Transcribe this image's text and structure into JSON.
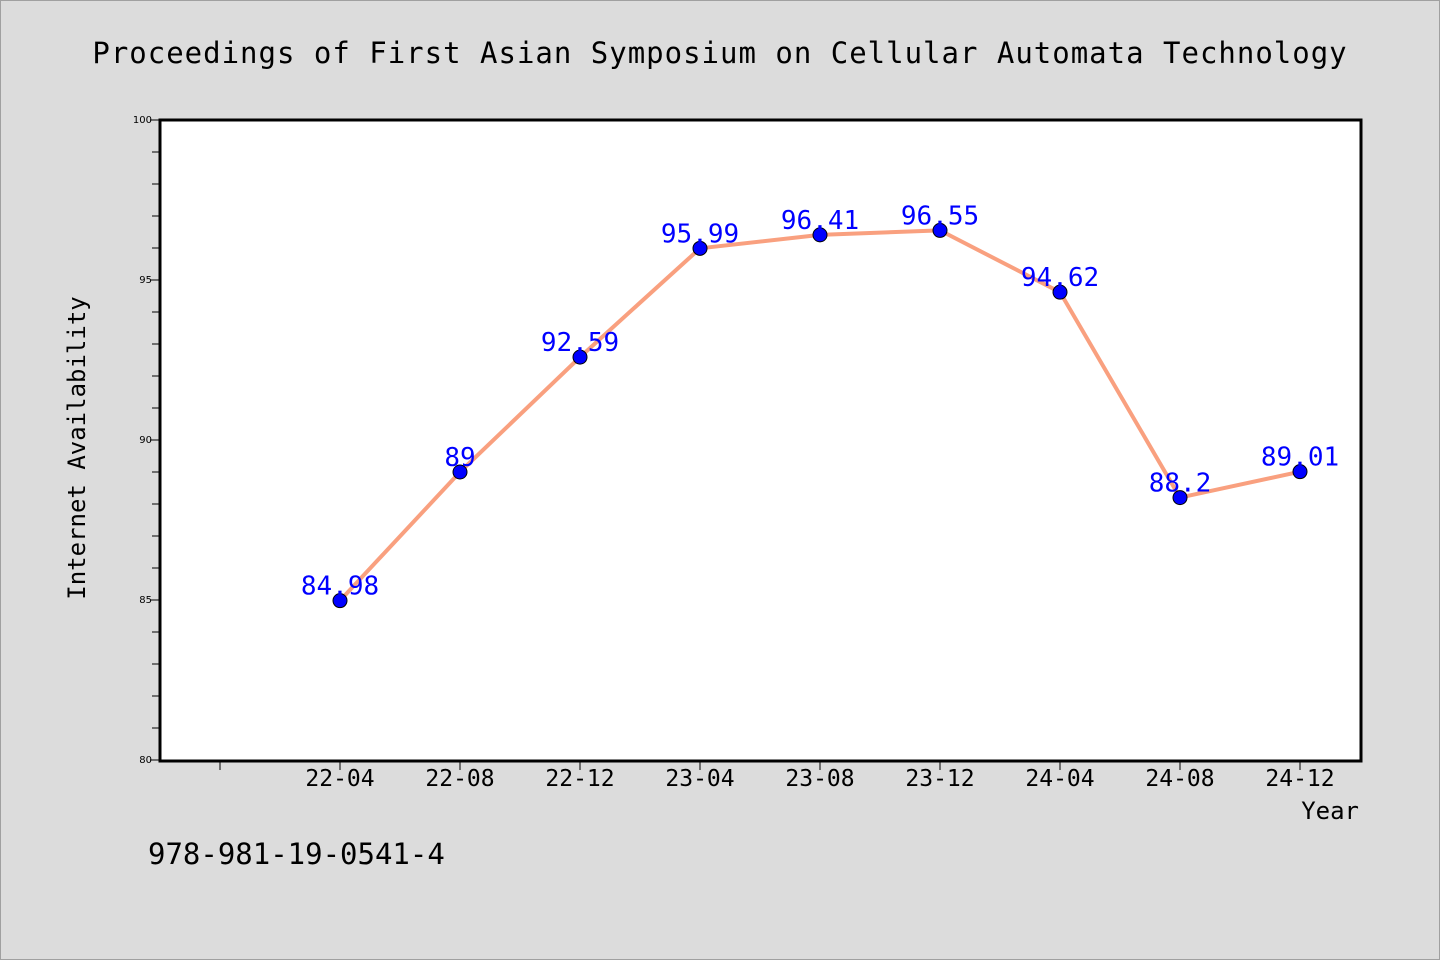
{
  "chart_data": {
    "type": "line",
    "title": "Proceedings of First Asian Symposium on Cellular Automata Technology",
    "xlabel": "Year",
    "ylabel": "Internet Availability",
    "categories": [
      "22-04",
      "22-08",
      "22-12",
      "23-04",
      "23-08",
      "23-12",
      "24-04",
      "24-08",
      "24-12"
    ],
    "series": [
      {
        "values": [
          84.98,
          89,
          92.59,
          95.99,
          96.41,
          96.55,
          94.62,
          88.2,
          89.01
        ],
        "labels": [
          "84.98",
          "89",
          "92.59",
          "95.99",
          "96.41",
          "96.55",
          "94.62",
          "88.2",
          "89.01"
        ]
      }
    ],
    "ylim": [
      80,
      100
    ],
    "yticks": [
      80,
      85,
      90,
      95,
      100
    ],
    "grid": false,
    "colors": {
      "line": "#f9a07f",
      "marker": "#0000ff",
      "label": "#0000ff",
      "background": "#dcdcdc",
      "plot_background": "#ffffff"
    }
  },
  "footer": {
    "isbn": "978-981-19-0541-4"
  }
}
